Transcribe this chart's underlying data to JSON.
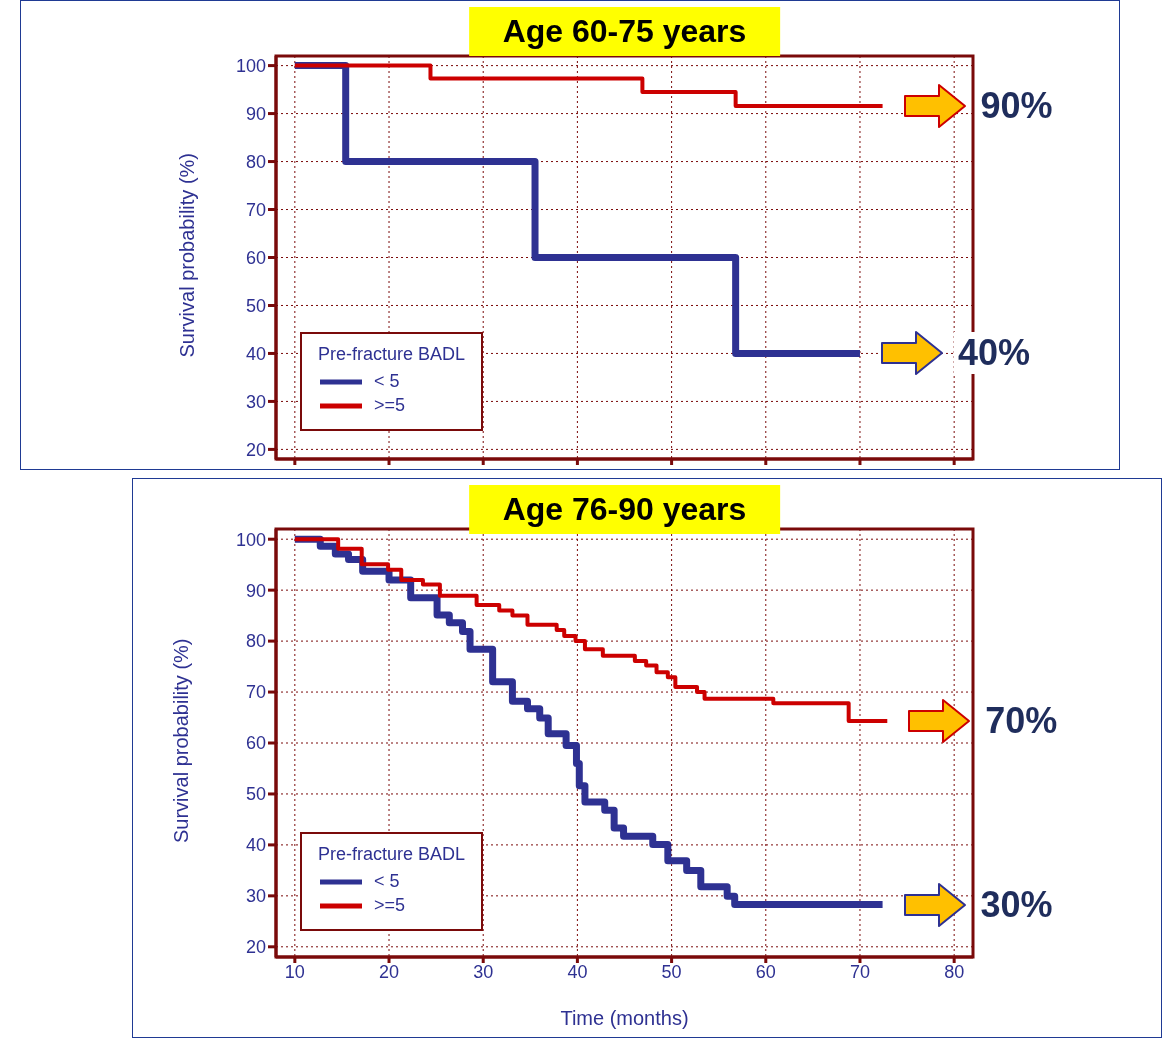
{
  "chart_data": [
    {
      "type": "step",
      "title": "Age 60-75 years",
      "ylabel": "Survival probability (%)",
      "legend_title": "Pre-fracture BADL",
      "xlim": [
        8,
        82
      ],
      "xticks": [
        10,
        20,
        30,
        40,
        50,
        60,
        70,
        80
      ],
      "ylim": [
        18,
        102
      ],
      "yticks": [
        20,
        30,
        40,
        50,
        60,
        70,
        80,
        90,
        100
      ],
      "tick_labels": "y",
      "grid": true,
      "legend": "bottom left",
      "series": [
        {
          "name": "< 5",
          "color": "#2e3192",
          "x": [
            10,
            15.4,
            35.5,
            56.8,
            70
          ],
          "values": [
            100,
            80,
            60,
            40,
            40
          ]
        },
        {
          "name": ">=5",
          "color": "#cc0000",
          "x": [
            10,
            24.4,
            46.9,
            56.8,
            72.4
          ],
          "values": [
            100,
            97.3,
            94.5,
            91.6,
            91.6
          ]
        }
      ],
      "annotations": [
        {
          "text": "90%",
          "x": 72.4,
          "y": 91.6
        },
        {
          "text": "40%",
          "x": 70,
          "y": 40
        }
      ]
    },
    {
      "type": "step",
      "title": "Age 76-90 years",
      "xlabel": "Time (months)",
      "ylabel": "Survival probability (%)",
      "legend_title": "Pre-fracture BADL",
      "xlim": [
        8,
        82
      ],
      "xticks": [
        10,
        20,
        30,
        40,
        50,
        60,
        70,
        80
      ],
      "ylim": [
        18,
        102
      ],
      "yticks": [
        20,
        30,
        40,
        50,
        60,
        70,
        80,
        90,
        100
      ],
      "grid": true,
      "legend": "bottom left",
      "series": [
        {
          "name": "< 5",
          "color": "#2e3192",
          "x": [
            10,
            12.7,
            14.3,
            15.7,
            17.2,
            20,
            22.3,
            25.1,
            26.4,
            27.8,
            28.6,
            31,
            33.1,
            34.7,
            36,
            36.9,
            38.8,
            39.9,
            40.2,
            40.8,
            42.9,
            43.9,
            44.9,
            48,
            49.6,
            51.6,
            53.1,
            55.9,
            56.7,
            72.4
          ],
          "values": [
            100,
            98.6,
            97.1,
            96,
            93.7,
            92,
            88.5,
            85.1,
            83.6,
            81.9,
            78.4,
            72,
            68.2,
            66.7,
            64.9,
            61.8,
            59.5,
            56,
            51.6,
            48.4,
            46.8,
            43.3,
            41.7,
            40.1,
            36.9,
            35,
            31.8,
            29.9,
            28.3,
            28.3
          ]
        },
        {
          "name": ">=5",
          "color": "#cc0000",
          "x": [
            10,
            14.6,
            17.1,
            19.9,
            21.3,
            23.6,
            25.4,
            29.3,
            31.7,
            33.1,
            34.7,
            37.8,
            38.6,
            39.8,
            40.8,
            42.7,
            46.1,
            47.3,
            48.4,
            49.6,
            50.4,
            52.7,
            53.5,
            60.8,
            68.8,
            72.9
          ],
          "values": [
            100,
            98.1,
            95.1,
            94,
            92,
            91.1,
            88.9,
            87.1,
            86,
            85,
            83.2,
            82.2,
            81,
            80,
            78.4,
            77.1,
            76.1,
            75.2,
            73.9,
            72.9,
            71,
            70,
            68.7,
            67.8,
            64.3,
            64.3
          ]
        }
      ],
      "annotations": [
        {
          "text": "70%",
          "x": 72.9,
          "y": 64.3
        },
        {
          "text": "30%",
          "x": 72.4,
          "y": 28.3
        }
      ]
    }
  ]
}
